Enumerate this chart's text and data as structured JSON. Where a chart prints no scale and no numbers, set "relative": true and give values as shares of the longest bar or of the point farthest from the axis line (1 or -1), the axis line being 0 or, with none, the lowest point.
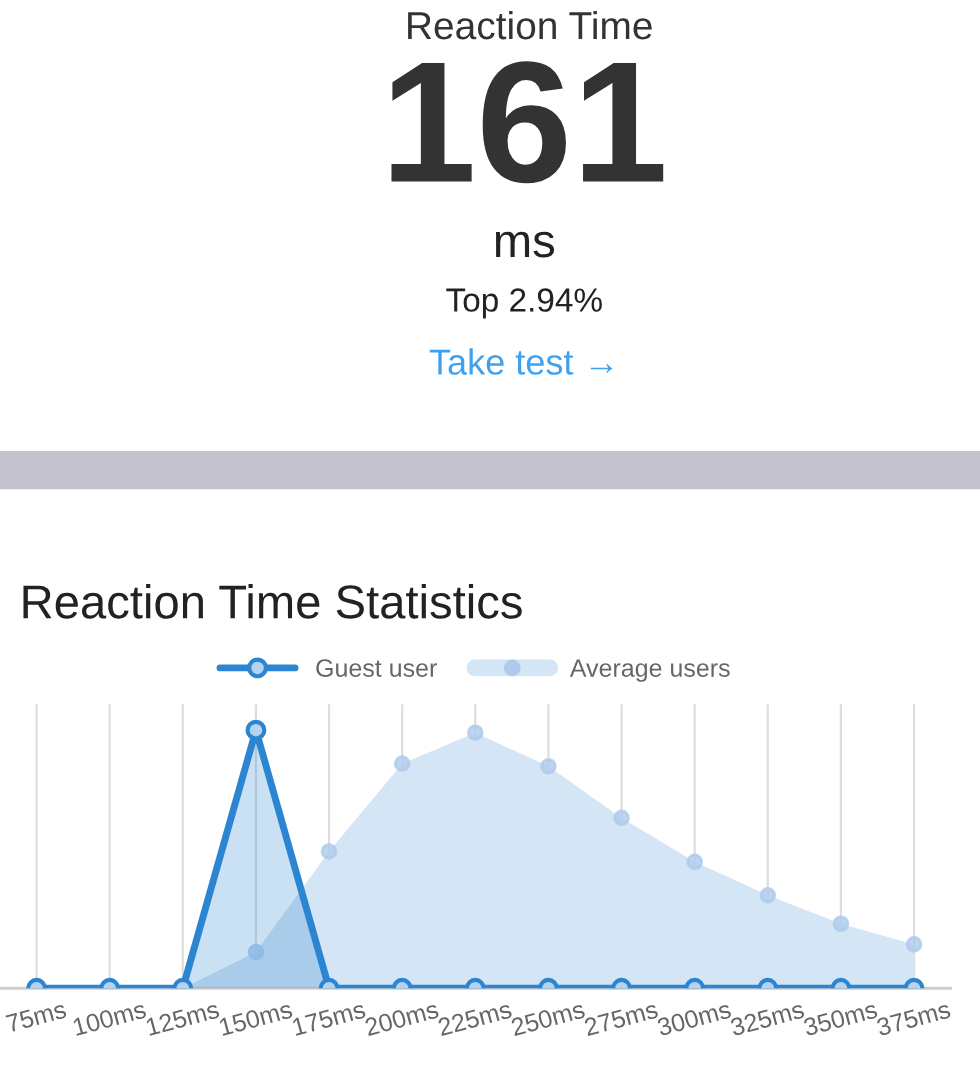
{
  "chart_data": [
    {
      "type": "other",
      "title": "Reaction Time",
      "annotations": [
        "161",
        "ms",
        "Top 2.94%",
        "Take test →"
      ]
    },
    {
      "type": "area",
      "title": "Reaction Time Statistics",
      "relative": true,
      "legend": "top",
      "grid": "x",
      "marker": "circle",
      "categories": [
        "75ms",
        "100ms",
        "125ms",
        "150ms",
        "175ms",
        "200ms",
        "225ms",
        "250ms",
        "275ms",
        "300ms",
        "325ms",
        "350ms",
        "375ms"
      ],
      "series": [
        {
          "name": "Guest user",
          "type": "line",
          "color": "#2b85d1",
          "values": [
            0,
            0,
            0,
            1,
            0,
            0,
            0,
            0,
            0,
            0,
            0,
            0,
            0
          ]
        },
        {
          "name": "Average users",
          "type": "area",
          "color": "#d4e5f5",
          "values": [
            0,
            0,
            0,
            0.14,
            0.53,
            0.87,
            0.99,
            0.86,
            0.66,
            0.49,
            0.36,
            0.25,
            0.17
          ]
        }
      ]
    }
  ]
}
